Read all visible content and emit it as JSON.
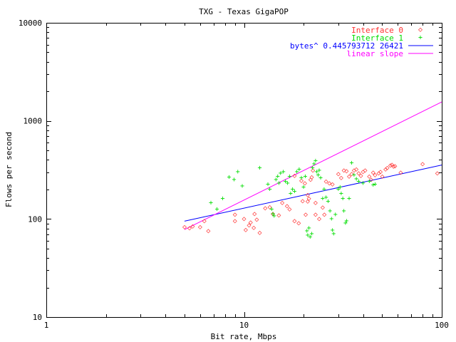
{
  "chart_data": {
    "type": "scatter",
    "title": "TXG - Texas GigaPOP",
    "xlabel": "Bit rate, Mbps",
    "ylabel": "Flows per second",
    "x_scale": "log",
    "y_scale": "log",
    "xlim": [
      1,
      100
    ],
    "ylim": [
      10,
      10000
    ],
    "x_ticks": [
      "1",
      "10",
      "100"
    ],
    "y_ticks": [
      "10",
      "100",
      "1000",
      "10000"
    ],
    "legend_position": "top-right",
    "grid": false,
    "series": [
      {
        "name": "Interface 0",
        "marker": "◇",
        "color": "#ff3333",
        "points": [
          [
            5.0,
            82
          ],
          [
            5.3,
            80
          ],
          [
            5.5,
            84
          ],
          [
            6.0,
            82
          ],
          [
            6.3,
            95
          ],
          [
            6.6,
            75
          ],
          [
            9.0,
            110
          ],
          [
            9.0,
            95
          ],
          [
            10.0,
            100
          ],
          [
            10.2,
            77
          ],
          [
            10.6,
            86
          ],
          [
            10.8,
            92
          ],
          [
            11.2,
            81
          ],
          [
            11.3,
            112
          ],
          [
            11.6,
            98
          ],
          [
            12.0,
            72
          ],
          [
            12.8,
            128
          ],
          [
            13.5,
            131
          ],
          [
            14.0,
            112
          ],
          [
            15.0,
            108
          ],
          [
            15.6,
            145
          ],
          [
            16.5,
            135
          ],
          [
            17.0,
            125
          ],
          [
            18.0,
            95
          ],
          [
            18.0,
            275
          ],
          [
            18.9,
            90
          ],
          [
            19.5,
            245
          ],
          [
            19.8,
            151
          ],
          [
            20.3,
            230
          ],
          [
            20.5,
            110
          ],
          [
            21.0,
            150
          ],
          [
            21.0,
            175
          ],
          [
            21.3,
            160
          ],
          [
            21.7,
            250
          ],
          [
            22.0,
            265
          ],
          [
            22.3,
            310
          ],
          [
            23.0,
            110
          ],
          [
            23.0,
            145
          ],
          [
            24.0,
            100
          ],
          [
            25.0,
            130
          ],
          [
            25.5,
            110
          ],
          [
            26.0,
            240
          ],
          [
            27.0,
            230
          ],
          [
            28.0,
            225
          ],
          [
            30.0,
            285
          ],
          [
            31.0,
            260
          ],
          [
            32.0,
            310
          ],
          [
            33.0,
            305
          ],
          [
            34.0,
            270
          ],
          [
            35.0,
            285
          ],
          [
            36.0,
            310
          ],
          [
            37.0,
            320
          ],
          [
            38.0,
            290
          ],
          [
            39.0,
            275
          ],
          [
            40.0,
            300
          ],
          [
            41.0,
            310
          ],
          [
            43.0,
            270
          ],
          [
            44.0,
            250
          ],
          [
            45.0,
            295
          ],
          [
            46.0,
            280
          ],
          [
            48.0,
            290
          ],
          [
            49.0,
            300
          ],
          [
            50.0,
            270
          ],
          [
            52.0,
            320
          ],
          [
            53.0,
            330
          ],
          [
            55.0,
            350
          ],
          [
            56.0,
            355
          ],
          [
            57.0,
            340
          ],
          [
            58.0,
            345
          ],
          [
            62.0,
            295
          ],
          [
            80.0,
            360
          ],
          [
            95.0,
            290
          ]
        ]
      },
      {
        "name": "Interface 1",
        "marker": "+",
        "color": "#00dd00",
        "points": [
          [
            6.8,
            145
          ],
          [
            7.3,
            125
          ],
          [
            7.8,
            160
          ],
          [
            8.4,
            265
          ],
          [
            8.9,
            250
          ],
          [
            9.3,
            300
          ],
          [
            9.8,
            215
          ],
          [
            12.0,
            330
          ],
          [
            13.2,
            225
          ],
          [
            13.5,
            200
          ],
          [
            13.8,
            125
          ],
          [
            14.0,
            112
          ],
          [
            14.2,
            107
          ],
          [
            14.5,
            250
          ],
          [
            14.8,
            270
          ],
          [
            15.0,
            230
          ],
          [
            15.3,
            290
          ],
          [
            15.8,
            300
          ],
          [
            16.2,
            240
          ],
          [
            16.6,
            230
          ],
          [
            17.0,
            270
          ],
          [
            17.2,
            180
          ],
          [
            17.6,
            200
          ],
          [
            18.0,
            190
          ],
          [
            18.5,
            300
          ],
          [
            19.0,
            320
          ],
          [
            19.5,
            260
          ],
          [
            20.0,
            210
          ],
          [
            20.4,
            270
          ],
          [
            20.8,
            75
          ],
          [
            21.0,
            68
          ],
          [
            21.3,
            80
          ],
          [
            21.6,
            65
          ],
          [
            22.0,
            70
          ],
          [
            22.2,
            330
          ],
          [
            22.6,
            360
          ],
          [
            23.0,
            390
          ],
          [
            23.3,
            300
          ],
          [
            23.7,
            280
          ],
          [
            24.0,
            310
          ],
          [
            24.4,
            260
          ],
          [
            25.0,
            160
          ],
          [
            25.4,
            200
          ],
          [
            26.0,
            165
          ],
          [
            26.6,
            150
          ],
          [
            27.2,
            120
          ],
          [
            27.7,
            100
          ],
          [
            28.0,
            76
          ],
          [
            28.4,
            70
          ],
          [
            29.0,
            110
          ],
          [
            30.0,
            200
          ],
          [
            30.6,
            210
          ],
          [
            31.0,
            180
          ],
          [
            31.6,
            160
          ],
          [
            32.0,
            120
          ],
          [
            32.6,
            90
          ],
          [
            33.0,
            95
          ],
          [
            34.0,
            160
          ],
          [
            35.0,
            370
          ],
          [
            36.0,
            280
          ],
          [
            37.0,
            255
          ],
          [
            38.0,
            240
          ],
          [
            40.0,
            230
          ],
          [
            43.0,
            240
          ],
          [
            45.0,
            220
          ],
          [
            46.0,
            225
          ]
        ]
      },
      {
        "name": "bytes^ 0.445793712 26421",
        "type": "line",
        "color": "#0000ff",
        "x": [
          5,
          100
        ],
        "y": [
          95,
          355
        ]
      },
      {
        "name": "linear slope",
        "type": "line",
        "color": "#ff00ff",
        "x": [
          5,
          100
        ],
        "y": [
          78,
          1560
        ]
      }
    ]
  }
}
